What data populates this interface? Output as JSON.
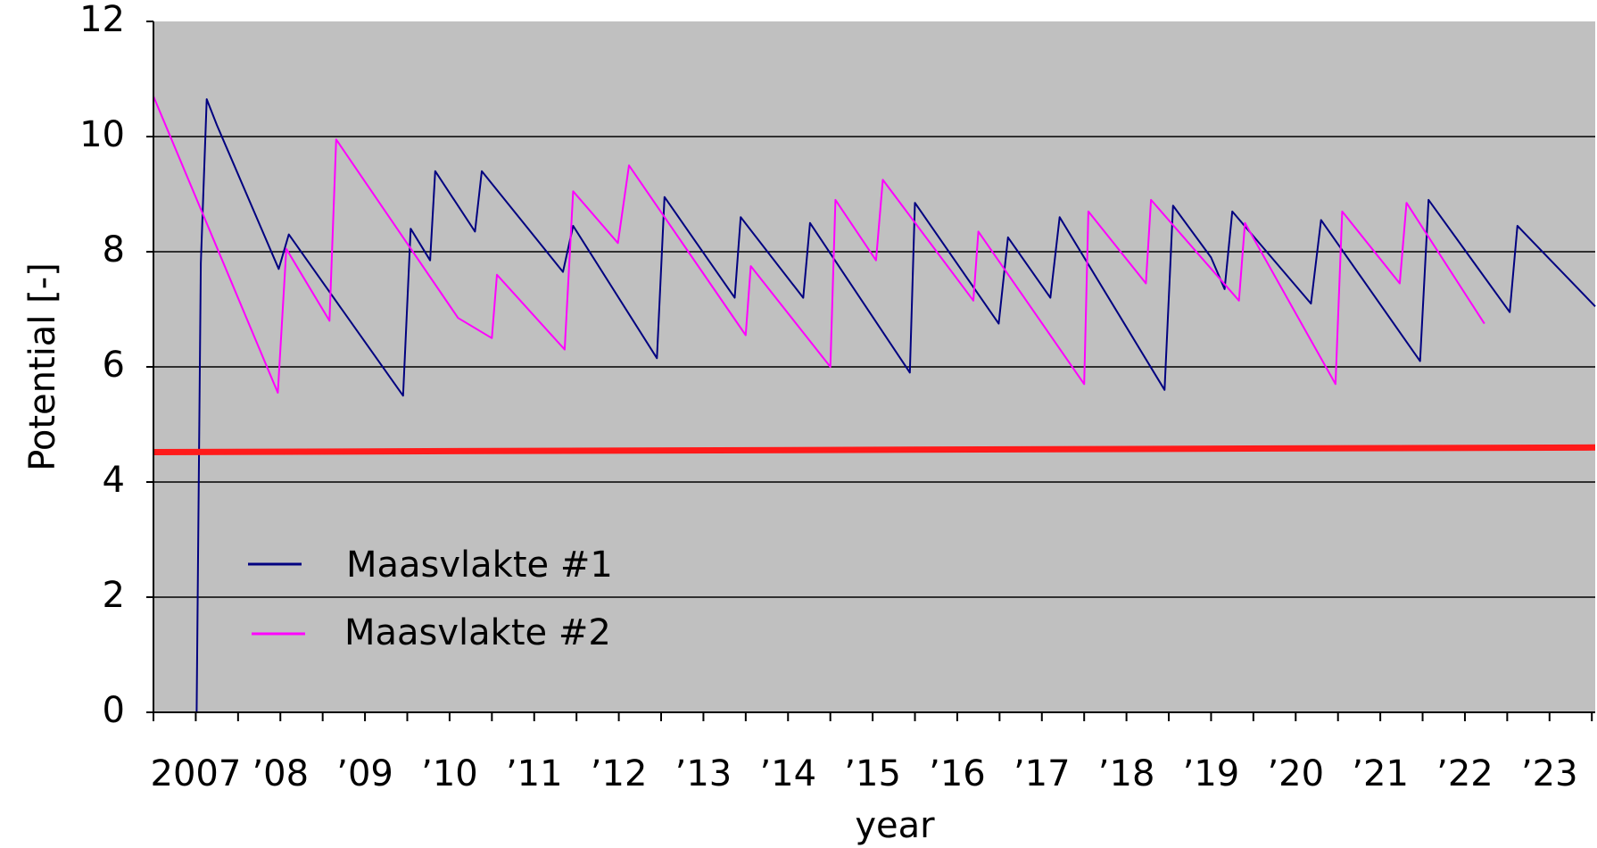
{
  "chart_data": {
    "type": "line",
    "title": "",
    "xlabel": "year",
    "ylabel": "Potential [-]",
    "xlim": [
      2007,
      2024.04
    ],
    "ylim": [
      0,
      12
    ],
    "y_ticks": [
      0,
      2,
      4,
      6,
      8,
      10,
      12
    ],
    "x_tick_labels": [
      "2007",
      "’08",
      "’09",
      "’10",
      "’11",
      "’12",
      "’13",
      "’14",
      "’15",
      "’16",
      "’17",
      "’18",
      "’19",
      "’20",
      "’21",
      "’22",
      "’23"
    ],
    "grid": true,
    "legend_placement": "bottom-left",
    "background_color": "#c0c0c0",
    "series": [
      {
        "name": "Maasvlakte #1",
        "color": "#000080",
        "points": [
          [
            2007.51,
            0.0
          ],
          [
            2007.53,
            3.2
          ],
          [
            2007.56,
            7.8
          ],
          [
            2007.63,
            10.65
          ],
          [
            2007.75,
            10.2
          ],
          [
            2008.48,
            7.7
          ],
          [
            2008.6,
            8.3
          ],
          [
            2009.95,
            5.5
          ],
          [
            2010.04,
            8.4
          ],
          [
            2010.27,
            7.85
          ],
          [
            2010.33,
            9.4
          ],
          [
            2010.8,
            8.35
          ],
          [
            2010.88,
            9.4
          ],
          [
            2011.84,
            7.65
          ],
          [
            2011.96,
            8.45
          ],
          [
            2012.95,
            6.15
          ],
          [
            2013.04,
            8.95
          ],
          [
            2013.87,
            7.2
          ],
          [
            2013.94,
            8.6
          ],
          [
            2014.68,
            7.2
          ],
          [
            2014.76,
            8.5
          ],
          [
            2015.94,
            5.9
          ],
          [
            2016.0,
            8.85
          ],
          [
            2016.99,
            6.75
          ],
          [
            2017.1,
            8.25
          ],
          [
            2017.6,
            7.2
          ],
          [
            2017.71,
            8.6
          ],
          [
            2018.95,
            5.6
          ],
          [
            2019.05,
            8.8
          ],
          [
            2019.5,
            7.9
          ],
          [
            2019.66,
            7.35
          ],
          [
            2019.75,
            8.7
          ],
          [
            2020.68,
            7.1
          ],
          [
            2020.8,
            8.55
          ],
          [
            2021.97,
            6.1
          ],
          [
            2022.07,
            8.9
          ],
          [
            2023.03,
            6.95
          ],
          [
            2023.12,
            8.45
          ],
          [
            2024.04,
            7.05
          ]
        ]
      },
      {
        "name": "Maasvlakte #2",
        "color": "#ff00ff",
        "points": [
          [
            2007.0,
            10.7
          ],
          [
            2008.47,
            5.55
          ],
          [
            2008.57,
            8.05
          ],
          [
            2009.08,
            6.8
          ],
          [
            2009.16,
            9.95
          ],
          [
            2010.53,
            7.0
          ],
          [
            2010.6,
            6.85
          ],
          [
            2011.0,
            6.5
          ],
          [
            2011.06,
            7.6
          ],
          [
            2011.86,
            6.3
          ],
          [
            2011.96,
            9.05
          ],
          [
            2012.49,
            8.15
          ],
          [
            2012.62,
            9.5
          ],
          [
            2014.0,
            6.55
          ],
          [
            2014.06,
            7.75
          ],
          [
            2015.0,
            6.0
          ],
          [
            2015.06,
            8.9
          ],
          [
            2015.54,
            7.85
          ],
          [
            2015.62,
            9.25
          ],
          [
            2016.69,
            7.15
          ],
          [
            2016.75,
            8.35
          ],
          [
            2018.0,
            5.7
          ],
          [
            2018.05,
            8.7
          ],
          [
            2018.73,
            7.45
          ],
          [
            2018.79,
            8.9
          ],
          [
            2019.83,
            7.15
          ],
          [
            2019.9,
            8.5
          ],
          [
            2020.97,
            5.7
          ],
          [
            2021.05,
            8.7
          ],
          [
            2021.73,
            7.45
          ],
          [
            2021.81,
            8.85
          ],
          [
            2022.73,
            6.75
          ]
        ]
      },
      {
        "name": "",
        "color": "#ff1a1a",
        "points": [
          [
            2007.0,
            4.52
          ],
          [
            2024.04,
            4.6
          ]
        ]
      }
    ]
  }
}
